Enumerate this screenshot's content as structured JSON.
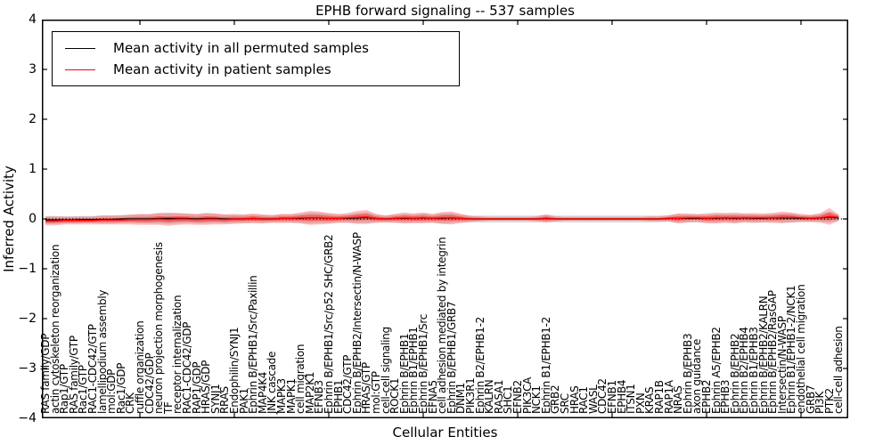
{
  "title": "EPHB forward signaling -- 537 samples",
  "legend": {
    "items": [
      {
        "label": "Mean activity in all permuted samples",
        "color": "#000000"
      },
      {
        "label": "Mean activity in patient samples",
        "color": "#ff0000"
      }
    ]
  },
  "axes": {
    "xlabel": "Cellular Entities",
    "ylabel": "Inferred Activity",
    "ylim": [
      -4,
      4
    ],
    "yticks": [
      {
        "value": 4,
        "label": "4"
      },
      {
        "value": 3,
        "label": "3"
      },
      {
        "value": 2,
        "label": "2"
      },
      {
        "value": 1,
        "label": "1"
      },
      {
        "value": 0,
        "label": "0"
      },
      {
        "value": -1,
        "label": "−1"
      },
      {
        "value": -2,
        "label": "−2"
      },
      {
        "value": -3,
        "label": "−3"
      },
      {
        "value": -4,
        "label": "−4"
      }
    ]
  },
  "chart_data": {
    "type": "line",
    "title": "EPHB forward signaling -- 537 samples",
    "xlabel": "Cellular Entities",
    "ylabel": "Inferred Activity",
    "ylim": [
      -4,
      4
    ],
    "grid": false,
    "legend_position": "upper left",
    "zero_line": {
      "style": "dotted",
      "color": "#000000",
      "value": 0
    },
    "x_major_tick_indices": [
      10,
      20,
      30,
      40,
      50,
      60,
      70,
      80
    ],
    "categories": [
      "RAS family/GDP",
      "actin cytoskeleton reorganization",
      "Rap1/GTP",
      "RAS family/GTP",
      "Rac1/GTP",
      "RAC1-CDC42/GTP",
      "lamellipodium assembly",
      "mol:GDP",
      "Rac1/GDP",
      "CRK",
      "ruffle organization",
      "CDC42/GDP",
      "neuron projection morphogenesis",
      "TF",
      "receptor internalization",
      "RAC1-CDC42/GDP",
      "RAP1/GDP",
      "HRAS/GDP",
      "SYNJ1",
      "RRAS",
      "Endophilin/SYNJ1",
      "PAK1",
      "Ephrin B/EPHB1/Src/Paxillin",
      "MAP4K4",
      "JNK cascade",
      "MAPK3",
      "MAPK1",
      "cell migration",
      "MAP2K1",
      "EFNB3",
      "Ephrin B/EPHB1/Src/p52 SHC/GRB2",
      "EPHB1",
      "CDC42/GTP",
      "Ephrin B/EPHB2/Intersectin/N-WASP",
      "HRAS/GTP",
      "mol:GTP",
      "cell-cell signaling",
      "ROCK1",
      "Ephrin B/EPHB1",
      "Ephrin B1/EPHB1",
      "Ephrin B/EPHB1/Src",
      "EFNA5",
      "cell adhesion mediated by integrin",
      "Ephrin B/EPHB1/GRB7",
      "DNM1",
      "PIK3R1",
      "Ephrin B2/EPHB1-2",
      "KALRN",
      "RASA1",
      "SHC1",
      "EFNB2",
      "PIK3CA",
      "NCK1",
      "Ephrin B1/EPHB1-2",
      "GRB2",
      "SRC",
      "HRAS",
      "RAC1",
      "WASL",
      "CDC42",
      "EFNB1",
      "EPHB4",
      "ITSN1",
      "PXN",
      "KRAS",
      "RAP1B",
      "RAP1A",
      "NRAS",
      "Ephrin B/EPHB3",
      "axon guidance",
      "EPHB2",
      "Ephrin A5/EPHB2",
      "EPHB3",
      "Ephrin B/EPHB2",
      "Ephrin B2/EPHB4",
      "Ephrin B1/EPHB3",
      "Ephrin B/EPHB2/KALRN",
      "Ephrin B/EPHB2/RasGAP",
      "Intersectin/N-WASP",
      "Ephrin B1/EPHB1-2/NCK1",
      "endothelial cell migration",
      "GRB7",
      "PI3K",
      "PTK2",
      "cell-cell adhesion"
    ],
    "series": [
      {
        "name": "Mean activity in all permuted samples",
        "color": "#000000",
        "values": [
          -0.02,
          -0.02,
          -0.02,
          -0.02,
          -0.01,
          -0.01,
          -0.01,
          -0.01,
          0.0,
          0.0,
          0.0,
          0.0,
          0.01,
          0.01,
          0.01,
          0.01,
          0.0,
          0.01,
          0.01,
          0.0,
          0.0,
          0.0,
          0.01,
          0.0,
          0.0,
          0.01,
          0.01,
          0.01,
          0.02,
          0.02,
          0.01,
          0.01,
          0.01,
          0.02,
          0.03,
          0.01,
          0.0,
          0.01,
          0.01,
          0.01,
          0.02,
          0.01,
          0.01,
          0.02,
          0.01,
          0.0,
          0.0,
          0.0,
          0.0,
          0.0,
          0.0,
          0.0,
          0.0,
          0.01,
          0.0,
          0.0,
          0.0,
          0.0,
          0.0,
          0.0,
          0.0,
          0.0,
          0.0,
          0.0,
          0.0,
          0.0,
          0.01,
          0.01,
          0.01,
          0.01,
          0.01,
          0.01,
          0.02,
          0.01,
          0.02,
          0.01,
          0.01,
          0.02,
          0.02,
          0.02,
          0.01,
          0.01,
          0.02,
          0.04,
          0.02
        ]
      },
      {
        "name": "Mean activity in patient samples",
        "color": "#ff0000",
        "values": [
          -0.04,
          -0.04,
          -0.03,
          -0.03,
          -0.03,
          -0.03,
          -0.02,
          -0.02,
          -0.02,
          -0.01,
          -0.01,
          -0.01,
          0.0,
          -0.01,
          0.0,
          0.0,
          -0.01,
          0.0,
          0.0,
          -0.01,
          0.0,
          0.0,
          0.01,
          0.0,
          0.0,
          0.01,
          0.01,
          0.02,
          0.02,
          0.02,
          0.01,
          0.01,
          0.02,
          0.03,
          0.04,
          0.01,
          0.0,
          0.01,
          0.02,
          0.01,
          0.02,
          0.01,
          0.02,
          0.02,
          0.01,
          0.0,
          0.0,
          0.0,
          0.0,
          0.0,
          0.0,
          0.0,
          0.0,
          0.01,
          0.0,
          0.0,
          0.0,
          0.0,
          0.0,
          0.0,
          0.0,
          0.0,
          0.0,
          0.0,
          0.0,
          0.0,
          0.01,
          0.01,
          0.02,
          0.02,
          0.01,
          0.02,
          0.02,
          0.02,
          0.02,
          0.02,
          0.02,
          0.02,
          0.03,
          0.03,
          0.02,
          0.01,
          0.02,
          0.05,
          0.03
        ]
      }
    ],
    "bands": [
      {
        "name": "permuted-samples-spread",
        "center_series": 0,
        "color": "#999999",
        "opacity": 0.35,
        "half_widths": [
          0.08,
          0.08,
          0.07,
          0.07,
          0.07,
          0.07,
          0.08,
          0.08,
          0.08,
          0.08,
          0.09,
          0.09,
          0.1,
          0.11,
          0.1,
          0.09,
          0.09,
          0.1,
          0.09,
          0.09,
          0.08,
          0.08,
          0.08,
          0.08,
          0.07,
          0.08,
          0.08,
          0.09,
          0.11,
          0.1,
          0.09,
          0.08,
          0.08,
          0.1,
          0.11,
          0.08,
          0.07,
          0.08,
          0.09,
          0.08,
          0.09,
          0.08,
          0.1,
          0.1,
          0.08,
          0.07,
          0.07,
          0.07,
          0.07,
          0.07,
          0.07,
          0.07,
          0.07,
          0.08,
          0.07,
          0.07,
          0.07,
          0.07,
          0.07,
          0.07,
          0.07,
          0.07,
          0.07,
          0.07,
          0.07,
          0.07,
          0.07,
          0.09,
          0.08,
          0.08,
          0.08,
          0.09,
          0.08,
          0.09,
          0.08,
          0.08,
          0.08,
          0.08,
          0.09,
          0.09,
          0.07,
          0.07,
          0.08,
          0.11,
          0.07
        ]
      },
      {
        "name": "patient-samples-spread-outer",
        "center_series": 1,
        "color": "#ff0000",
        "opacity": 0.25,
        "half_widths": [
          0.09,
          0.09,
          0.08,
          0.08,
          0.08,
          0.08,
          0.09,
          0.09,
          0.09,
          0.1,
          0.11,
          0.11,
          0.12,
          0.13,
          0.12,
          0.11,
          0.11,
          0.12,
          0.11,
          0.1,
          0.1,
          0.09,
          0.1,
          0.09,
          0.08,
          0.09,
          0.09,
          0.11,
          0.14,
          0.13,
          0.11,
          0.09,
          0.1,
          0.13,
          0.14,
          0.09,
          0.07,
          0.09,
          0.11,
          0.1,
          0.11,
          0.09,
          0.12,
          0.13,
          0.09,
          0.06,
          0.05,
          0.04,
          0.04,
          0.04,
          0.04,
          0.04,
          0.05,
          0.08,
          0.05,
          0.04,
          0.04,
          0.04,
          0.04,
          0.04,
          0.04,
          0.04,
          0.04,
          0.04,
          0.05,
          0.05,
          0.06,
          0.1,
          0.09,
          0.08,
          0.1,
          0.11,
          0.1,
          0.11,
          0.09,
          0.1,
          0.09,
          0.1,
          0.12,
          0.1,
          0.08,
          0.07,
          0.09,
          0.17,
          0.06
        ]
      },
      {
        "name": "patient-samples-spread-inner",
        "center_series": 1,
        "color": "#ff0000",
        "opacity": 0.4,
        "half_widths": [
          0.04,
          0.04,
          0.036,
          0.036,
          0.036,
          0.036,
          0.04,
          0.04,
          0.04,
          0.045,
          0.05,
          0.05,
          0.054,
          0.058,
          0.054,
          0.05,
          0.05,
          0.054,
          0.05,
          0.045,
          0.045,
          0.04,
          0.045,
          0.04,
          0.036,
          0.04,
          0.04,
          0.05,
          0.063,
          0.058,
          0.05,
          0.04,
          0.045,
          0.058,
          0.063,
          0.04,
          0.032,
          0.04,
          0.05,
          0.045,
          0.05,
          0.04,
          0.054,
          0.058,
          0.04,
          0.027,
          0.022,
          0.018,
          0.018,
          0.018,
          0.018,
          0.018,
          0.022,
          0.036,
          0.022,
          0.018,
          0.018,
          0.018,
          0.018,
          0.018,
          0.018,
          0.018,
          0.018,
          0.018,
          0.022,
          0.022,
          0.027,
          0.045,
          0.04,
          0.036,
          0.045,
          0.05,
          0.045,
          0.05,
          0.04,
          0.045,
          0.04,
          0.045,
          0.054,
          0.045,
          0.036,
          0.032,
          0.04,
          0.077,
          0.027
        ]
      }
    ]
  }
}
